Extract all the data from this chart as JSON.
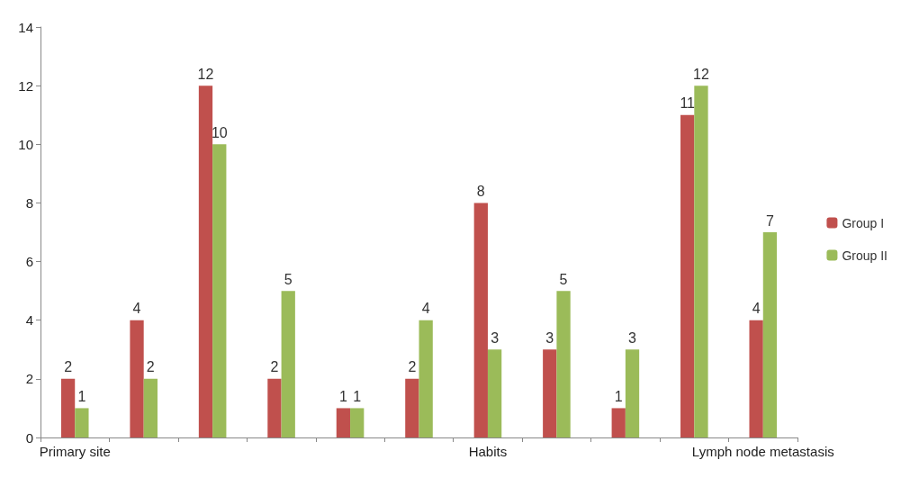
{
  "chart_data": {
    "type": "bar",
    "categories": [
      "Primary site",
      null,
      null,
      null,
      null,
      null,
      "Habits",
      null,
      null,
      null,
      "Lymph node metastasis"
    ],
    "series": [
      {
        "name": "Group I",
        "color": "#c0504d",
        "values": [
          2,
          4,
          12,
          2,
          1,
          2,
          8,
          3,
          1,
          11,
          4
        ]
      },
      {
        "name": "Group II",
        "color": "#9bbb59",
        "values": [
          1,
          2,
          10,
          5,
          1,
          4,
          3,
          5,
          3,
          12,
          7
        ]
      }
    ],
    "ylim": [
      0,
      14
    ],
    "yticks": [
      0,
      2,
      4,
      6,
      8,
      10,
      12,
      14
    ],
    "grid": false,
    "legend": "right",
    "data_labels": true
  }
}
